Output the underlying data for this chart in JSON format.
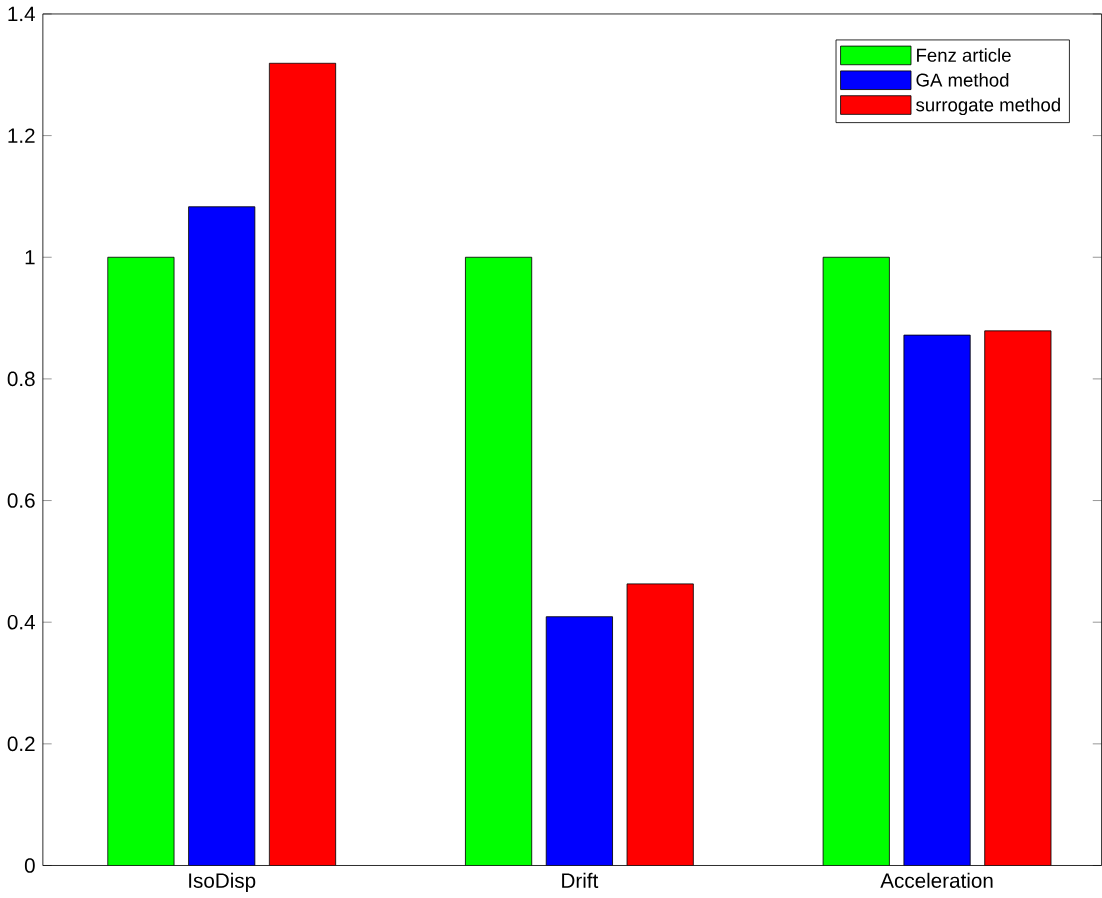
{
  "chart_data": {
    "type": "bar",
    "categories": [
      "IsoDisp",
      "Drift",
      "Acceleration"
    ],
    "series": [
      {
        "name": "Fenz article",
        "color": "#00ff00",
        "values": [
          1,
          1,
          1
        ]
      },
      {
        "name": "GA method",
        "color": "#0000ff",
        "values": [
          1.083,
          0.409,
          0.872
        ]
      },
      {
        "name": "surrogate method",
        "color": "#ff0000",
        "values": [
          1.319,
          0.463,
          0.879
        ]
      }
    ],
    "ylim": [
      0,
      1.4
    ],
    "yticks": [
      0,
      0.2,
      0.4,
      0.6,
      0.8,
      1,
      1.2,
      1.4
    ],
    "grid": false,
    "legend": "top right"
  }
}
